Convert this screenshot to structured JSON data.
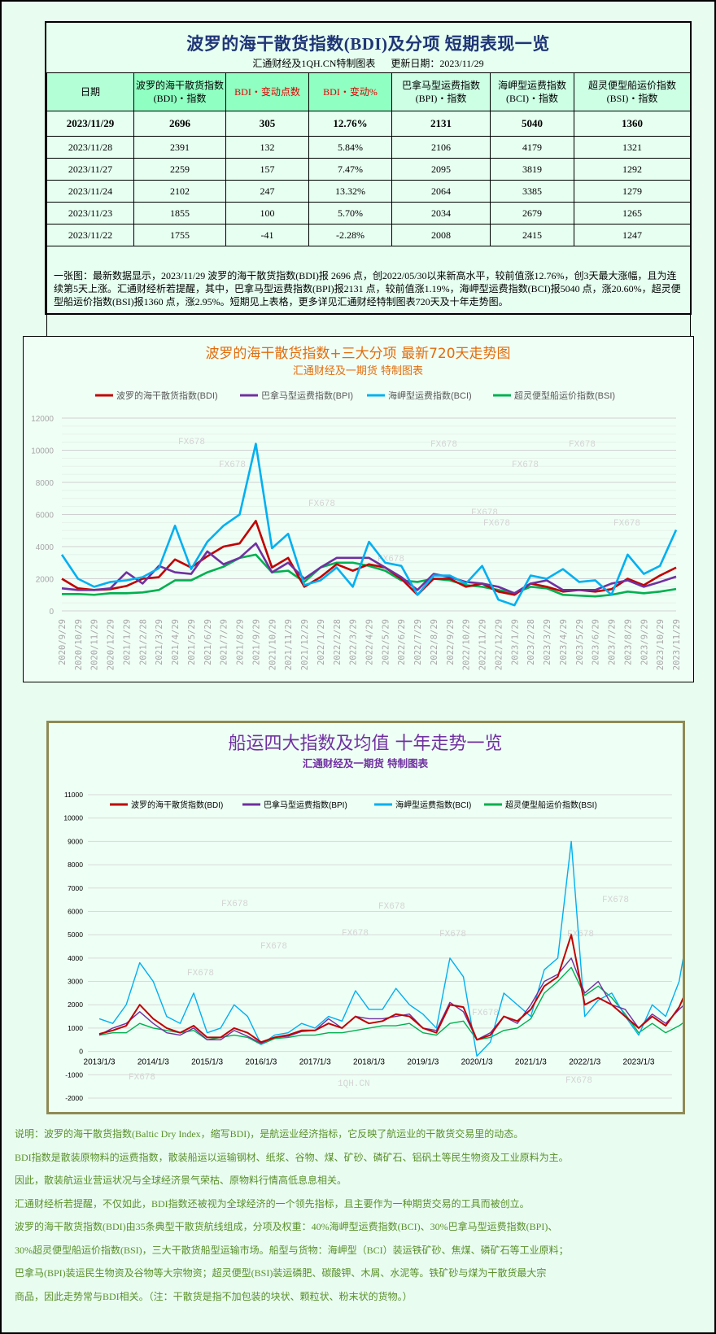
{
  "table": {
    "title": "波罗的海干散货指数(BDI)及分项 短期表现一览",
    "source": "汇通财经及1QH.CN特制图表",
    "update": "更新日期：2023/11/29",
    "headers": [
      {
        "l1": "日期",
        "l2": ""
      },
      {
        "l1": "波罗的海干散货指数",
        "l2": "(BDI)・指数"
      },
      {
        "l1": "BDI・变动点数",
        "l2": ""
      },
      {
        "l1": "BDI・变动%",
        "l2": ""
      },
      {
        "l1": "巴拿马型运费指数",
        "l2": "(BPI)・指数"
      },
      {
        "l1": "海岬型运费指数",
        "l2": "(BCI)・指数"
      },
      {
        "l1": "超灵便型船运价指数",
        "l2": "(BSI)・指数"
      }
    ],
    "rows": [
      [
        "2023/11/29",
        "2696",
        "305",
        "12.76%",
        "2131",
        "5040",
        "1360"
      ],
      [
        "2023/11/28",
        "2391",
        "132",
        "5.84%",
        "2106",
        "4179",
        "1321"
      ],
      [
        "2023/11/27",
        "2259",
        "157",
        "7.47%",
        "2095",
        "3819",
        "1292"
      ],
      [
        "2023/11/24",
        "2102",
        "247",
        "13.32%",
        "2064",
        "3385",
        "1279"
      ],
      [
        "2023/11/23",
        "1855",
        "100",
        "5.70%",
        "2034",
        "2679",
        "1265"
      ],
      [
        "2023/11/22",
        "1755",
        "-41",
        "-2.28%",
        "2008",
        "2415",
        "1247"
      ]
    ],
    "note": "一张图：最新数据显示，2023/11/29 波罗的海干散货指数(BDI)报 2696 点，创2022/05/30以来新高水平，较前值涨12.76%，创3天最大涨幅，且为连续第5天上涨。汇通财经析若提醒，其中，巴拿马型运费指数(BPI)报2131 点，较前值涨1.19%，海岬型运费指数(BCI)报5040 点，涨20.60%，超灵便型船运价指数(BSI)报1360 点，涨2.95%。短期见上表格，更多详见汇通财经特制图表720天及十年走势图。"
  },
  "colors": {
    "BDI": "#c00000",
    "BPI": "#7030a0",
    "BCI": "#00b0f0",
    "BSI": "#00b050",
    "title1": "#e36c0a",
    "title2": "#7030a0",
    "table_title": "#1f3575",
    "desc": "#5a8f29"
  },
  "watermarks": {
    "fx": "FX678",
    "qh": "1QH.CN"
  },
  "chart_data": [
    {
      "type": "line",
      "title": "波罗的海干散货指数+三大分项  最新720天走势图",
      "subtitle": "汇通财经及一期货  特制图表",
      "ylim": [
        0,
        12000
      ],
      "yticks": [
        "0",
        "2000",
        "4000",
        "6000",
        "8000",
        "10000",
        "12000"
      ],
      "grid": true,
      "legend": "top",
      "x": [
        "2020/9/29",
        "2020/10/29",
        "2020/11/29",
        "2020/12/29",
        "2021/1/29",
        "2021/2/28",
        "2021/3/29",
        "2021/4/29",
        "2021/5/29",
        "2021/6/29",
        "2021/7/29",
        "2021/8/29",
        "2021/9/29",
        "2021/10/29",
        "2021/11/29",
        "2021/12/29",
        "2022/1/29",
        "2022/2/28",
        "2022/3/29",
        "2022/4/29",
        "2022/5/29",
        "2022/6/29",
        "2022/7/29",
        "2022/8/29",
        "2022/9/29",
        "2022/10/29",
        "2022/11/29",
        "2022/12/29",
        "2023/1/29",
        "2023/2/28",
        "2023/3/29",
        "2023/4/29",
        "2023/5/29",
        "2023/6/29",
        "2023/7/29",
        "2023/8/29",
        "2023/9/29",
        "2023/10/29",
        "2023/11/29"
      ],
      "series": [
        {
          "name": "波罗的海干散货指数(BDI)",
          "key": "BDI",
          "values": [
            2000,
            1400,
            1300,
            1350,
            1550,
            2000,
            2100,
            3200,
            2700,
            3400,
            4000,
            4200,
            5600,
            2700,
            3300,
            1500,
            2100,
            2900,
            2500,
            2900,
            2700,
            2000,
            1000,
            2000,
            2000,
            1500,
            1700,
            1200,
            1000,
            1700,
            1500,
            1200,
            1300,
            1200,
            1350,
            2000,
            1600,
            2200,
            2696
          ]
        },
        {
          "name": "巴拿马型运费指数(BPI)",
          "key": "BPI",
          "values": [
            1400,
            1300,
            1300,
            1400,
            2400,
            1700,
            2800,
            2400,
            2300,
            3700,
            2900,
            3300,
            4200,
            2400,
            3000,
            2000,
            2700,
            3300,
            3300,
            3300,
            2700,
            2100,
            1300,
            2300,
            2100,
            1800,
            1700,
            1500,
            1100,
            1700,
            1900,
            1300,
            1300,
            1300,
            1700,
            1900,
            1500,
            1800,
            2131
          ]
        },
        {
          "name": "海岬型运费指数(BCI)",
          "key": "BCI",
          "values": [
            3500,
            2000,
            1500,
            1800,
            1900,
            2100,
            2650,
            5300,
            2600,
            4300,
            5300,
            6000,
            10400,
            3900,
            4800,
            1600,
            1900,
            2700,
            1500,
            4300,
            3000,
            2800,
            1000,
            2200,
            2200,
            1700,
            2800,
            700,
            350,
            2200,
            2000,
            2600,
            1800,
            1900,
            1000,
            3500,
            2300,
            2800,
            5040
          ]
        },
        {
          "name": "超灵便型船运价指数(BSI)",
          "key": "BSI",
          "values": [
            1050,
            1050,
            1000,
            1100,
            1100,
            1150,
            1300,
            1900,
            1900,
            2400,
            2750,
            3300,
            3500,
            2400,
            2500,
            1800,
            2700,
            3000,
            3000,
            2800,
            2500,
            1900,
            1800,
            2000,
            1900,
            1600,
            1500,
            1300,
            1100,
            1500,
            1400,
            1000,
            950,
            900,
            1000,
            1200,
            1100,
            1200,
            1360
          ]
        }
      ]
    },
    {
      "type": "line",
      "title": "船运四大指数及均值 十年走势一览",
      "subtitle": "汇通财经及一期货 特制图表",
      "ylim": [
        -2000,
        11000
      ],
      "yticks": [
        "-2000",
        "-1000",
        "0",
        "1000",
        "2000",
        "3000",
        "4000",
        "5000",
        "6000",
        "7000",
        "8000",
        "9000",
        "10000",
        "11000"
      ],
      "xticks": [
        "2013/1/3",
        "2014/1/3",
        "2015/1/3",
        "2016/1/3",
        "2017/1/3",
        "2018/1/3",
        "2019/1/3",
        "2020/1/3",
        "2021/1/3",
        "2022/1/3",
        "2023/1/3"
      ],
      "grid": true,
      "legend": "top",
      "x": [
        "2013/1",
        "2013/4",
        "2013/7",
        "2013/10",
        "2014/1",
        "2014/4",
        "2014/7",
        "2014/10",
        "2015/1",
        "2015/4",
        "2015/7",
        "2015/10",
        "2016/1",
        "2016/4",
        "2016/7",
        "2016/10",
        "2017/1",
        "2017/4",
        "2017/7",
        "2017/10",
        "2018/1",
        "2018/4",
        "2018/7",
        "2018/10",
        "2019/1",
        "2019/4",
        "2019/7",
        "2019/10",
        "2020/1",
        "2020/4",
        "2020/7",
        "2020/10",
        "2021/1",
        "2021/4",
        "2021/7",
        "2021/10",
        "2022/1",
        "2022/4",
        "2022/7",
        "2022/10",
        "2023/1",
        "2023/4",
        "2023/7",
        "2023/10",
        "2023/11/29"
      ],
      "series": [
        {
          "name": "波罗的海干散货指数(BDI)",
          "key": "BDI",
          "values": [
            750,
            900,
            1100,
            2000,
            1400,
            1000,
            800,
            1100,
            600,
            600,
            1000,
            800,
            400,
            600,
            700,
            900,
            900,
            1200,
            1000,
            1500,
            1200,
            1300,
            1600,
            1500,
            1000,
            800,
            2000,
            1900,
            500,
            700,
            1500,
            1300,
            1800,
            2800,
            3200,
            5000,
            2000,
            2300,
            2000,
            1500,
            1000,
            1500,
            1100,
            1900,
            2696
          ]
        },
        {
          "name": "巴拿马型运费指数(BPI)",
          "key": "BPI",
          "values": [
            700,
            1000,
            1200,
            1700,
            1200,
            800,
            700,
            1000,
            500,
            500,
            900,
            650,
            350,
            600,
            650,
            850,
            900,
            1400,
            1000,
            1500,
            1400,
            1400,
            1500,
            1600,
            1000,
            900,
            2100,
            1700,
            500,
            800,
            1500,
            1200,
            2000,
            3000,
            3300,
            4000,
            2500,
            3000,
            2000,
            1800,
            1000,
            1600,
            1200,
            1800,
            2131
          ]
        },
        {
          "name": "海岬型运费指数(BCI)",
          "key": "BCI",
          "values": [
            1400,
            1200,
            2000,
            3800,
            3000,
            1500,
            1200,
            2500,
            800,
            1000,
            2000,
            1500,
            300,
            700,
            800,
            1200,
            1000,
            1500,
            1300,
            2600,
            1800,
            1800,
            2700,
            2000,
            1600,
            1000,
            4000,
            3200,
            -200,
            400,
            2500,
            2000,
            1500,
            3500,
            4000,
            9000,
            1500,
            2200,
            2500,
            1500,
            700,
            2000,
            1500,
            3000,
            5040
          ]
        },
        {
          "name": "超灵便型船运价指数(BSI)",
          "key": "BSI",
          "values": [
            700,
            800,
            800,
            1200,
            1000,
            900,
            800,
            900,
            500,
            600,
            700,
            600,
            300,
            550,
            600,
            700,
            700,
            800,
            800,
            900,
            1000,
            1100,
            1100,
            1200,
            800,
            700,
            1200,
            1300,
            500,
            600,
            900,
            1000,
            1400,
            2500,
            3000,
            3600,
            2400,
            2800,
            2300,
            1600,
            800,
            1200,
            800,
            1100,
            1360
          ]
        }
      ]
    }
  ],
  "description": [
    "说明：波罗的海干散货指数(Baltic Dry Index，缩写BDI)，是航运业经济指标，它反映了航运业的干散货交易里的动态。",
    "BDI指数是散装原物料的运费指数，散装船运以运输钢材、纸浆、谷物、煤、矿砂、磷矿石、铝矾土等民生物资及工业原料为主。",
    "因此，散装航运业营运状况与全球经济景气荣枯、原物料行情高低息息相关。",
    "汇通财经析若提醒，不仅如此，BDI指数还被视为全球经济的一个领先指标，且主要作为一种期货交易的工具而被创立。",
    "波罗的海干散货指数(BDI)由35条典型干散货航线组成，分项及权重：40%海岬型运费指数(BCI)、30%巴拿马型运费指数(BPI)、",
    "30%超灵便型船运价指数(BSI)，三大干散货船型运输市场。船型与货物：海岬型（BCI）装运铁矿砂、焦煤、磷矿石等工业原料；",
    "巴拿马(BPI)装运民生物资及谷物等大宗物资；超灵便型(BSI)装运磷肥、碳酸钾、木屑、水泥等。铁矿砂与煤为干散货最大宗",
    "商品，因此走势常与BDI相关。（注：干散货是指不加包装的块状、颗粒状、粉末状的货物。）"
  ]
}
